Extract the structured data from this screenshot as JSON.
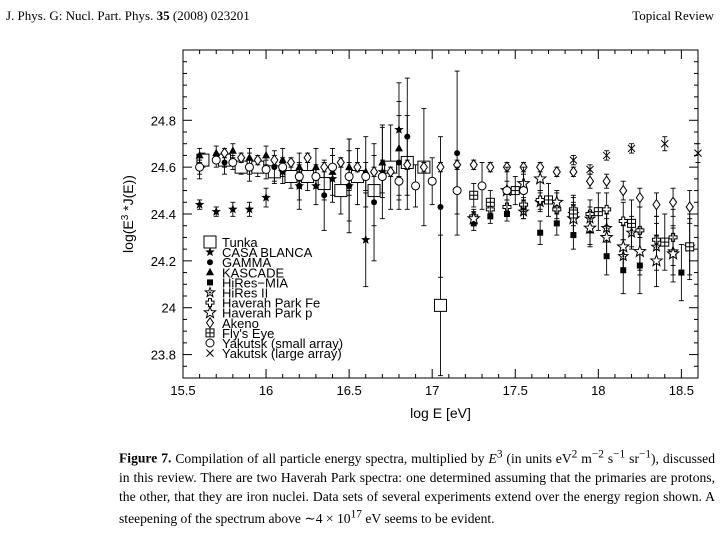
{
  "header": {
    "journal": "J. Phys. G: Nucl. Part. Phys.",
    "volume": "35",
    "year_article": "(2008) 023201",
    "section": "Topical Review"
  },
  "caption": {
    "label": "Figure 7.",
    "text_html": "Compilation of all particle energy spectra, multiplied by <i>E</i><sup>3</sup> (in units eV<sup>2</sup> m<sup>−2</sup> s<sup>−1</sup> sr<sup>−1</sup>), discussed in this review. There are two Haverah Park spectra: one determined assuming that the primaries are protons, the other, that they are iron nuclei. Data sets of several experiments extend over the energy region shown. A steepening of the spectrum above ∼4 × 10<sup>17</sup> eV seems to be evident."
  },
  "chart_data": {
    "type": "scatter",
    "xlabel": "log E [eV]",
    "ylabel": "log(E^3 *J(E))",
    "xlim": [
      15.5,
      18.6
    ],
    "ylim": [
      23.7,
      25.1
    ],
    "xticks": [
      "15.5",
      "16",
      "16.5",
      "17",
      "17.5",
      "18",
      "18.5"
    ],
    "yticks": [
      "23.8",
      "24",
      "24.2",
      "24.4",
      "24.6",
      "24.8"
    ],
    "legend_position": "lower-left",
    "series": [
      {
        "name": "Tunka",
        "marker": "big-square",
        "points": [
          [
            15.62,
            24.63,
            0.03
          ],
          [
            15.75,
            24.63,
            0.03
          ],
          [
            15.85,
            24.6,
            0.03
          ],
          [
            15.95,
            24.6,
            0.04
          ],
          [
            16.05,
            24.58,
            0.04
          ],
          [
            16.15,
            24.56,
            0.05
          ],
          [
            16.25,
            24.56,
            0.06
          ],
          [
            16.35,
            24.53,
            0.07
          ],
          [
            16.45,
            24.5,
            0.1
          ],
          [
            16.55,
            24.56,
            0.12
          ],
          [
            16.65,
            24.5,
            0.15
          ],
          [
            16.75,
            24.6,
            0.18
          ],
          [
            16.85,
            24.62,
            0.2
          ],
          [
            16.95,
            24.6,
            0.25
          ],
          [
            17.05,
            24.01,
            0.3
          ]
        ]
      },
      {
        "name": "CASA BLANCA",
        "marker": "star",
        "points": [
          [
            15.6,
            24.44,
            0.02
          ],
          [
            15.7,
            24.41,
            0.02
          ],
          [
            15.8,
            24.42,
            0.03
          ],
          [
            15.9,
            24.42,
            0.03
          ],
          [
            16.0,
            24.47,
            0.04
          ],
          [
            16.1,
            24.58,
            0.05
          ],
          [
            16.2,
            24.52,
            0.06
          ],
          [
            16.3,
            24.52,
            0.08
          ],
          [
            16.4,
            24.55,
            0.1
          ],
          [
            16.5,
            24.52,
            0.15
          ],
          [
            16.6,
            24.29,
            0.2
          ],
          [
            16.7,
            24.58,
            0.2
          ],
          [
            16.8,
            24.76,
            0.2
          ]
        ]
      },
      {
        "name": "GAMMA",
        "marker": "dot",
        "points": [
          [
            15.6,
            24.6,
            0.05
          ],
          [
            15.75,
            24.62,
            0.05
          ],
          [
            15.9,
            24.6,
            0.06
          ],
          [
            16.05,
            24.6,
            0.07
          ],
          [
            16.2,
            24.52,
            0.1
          ],
          [
            16.35,
            24.48,
            0.15
          ],
          [
            16.5,
            24.52,
            0.2
          ],
          [
            16.65,
            24.45,
            0.25
          ],
          [
            16.8,
            24.62,
            0.2
          ],
          [
            16.85,
            24.73,
            0.25
          ],
          [
            17.05,
            24.43,
            0.3
          ],
          [
            17.15,
            24.66,
            0.35
          ]
        ]
      },
      {
        "name": "KASCADE",
        "marker": "triangle",
        "points": [
          [
            15.6,
            24.65,
            0.03
          ],
          [
            15.7,
            24.66,
            0.03
          ],
          [
            15.8,
            24.67,
            0.03
          ],
          [
            15.9,
            24.64,
            0.04
          ],
          [
            16.0,
            24.65,
            0.04
          ],
          [
            16.1,
            24.63,
            0.05
          ],
          [
            16.2,
            24.6,
            0.06
          ],
          [
            16.3,
            24.6,
            0.08
          ],
          [
            16.4,
            24.58,
            0.1
          ],
          [
            16.5,
            24.6,
            0.12
          ],
          [
            16.6,
            24.58,
            0.15
          ],
          [
            16.7,
            24.62,
            0.15
          ],
          [
            16.8,
            24.68,
            0.2
          ]
        ]
      },
      {
        "name": "HiRes−MIA",
        "marker": "small-square",
        "points": [
          [
            17.25,
            24.36,
            0.03
          ],
          [
            17.35,
            24.39,
            0.03
          ],
          [
            17.45,
            24.4,
            0.03
          ],
          [
            17.55,
            24.42,
            0.04
          ],
          [
            17.65,
            24.32,
            0.05
          ],
          [
            17.75,
            24.36,
            0.05
          ],
          [
            17.85,
            24.31,
            0.06
          ],
          [
            17.95,
            24.33,
            0.07
          ],
          [
            18.05,
            24.22,
            0.08
          ],
          [
            18.15,
            24.16,
            0.1
          ],
          [
            18.25,
            24.18,
            0.12
          ],
          [
            18.5,
            24.15,
            0.12
          ]
        ]
      },
      {
        "name": "HiRes II",
        "marker": "hollow-star",
        "points": [
          [
            17.55,
            24.41,
            0.03
          ],
          [
            17.65,
            24.45,
            0.04
          ],
          [
            17.75,
            24.45,
            0.04
          ],
          [
            17.85,
            24.4,
            0.05
          ],
          [
            17.95,
            24.38,
            0.05
          ],
          [
            18.05,
            24.34,
            0.06
          ],
          [
            18.15,
            24.22,
            0.07
          ],
          [
            18.2,
            24.32,
            0.07
          ],
          [
            18.25,
            24.24,
            0.08
          ],
          [
            18.35,
            24.26,
            0.1
          ],
          [
            18.45,
            24.24,
            0.1
          ],
          [
            18.55,
            24.26,
            0.12
          ]
        ]
      },
      {
        "name": "Haverah Park Fe",
        "marker": "hollow-plus",
        "points": [
          [
            17.25,
            24.39,
            0.03
          ],
          [
            17.35,
            24.42,
            0.03
          ],
          [
            17.45,
            24.43,
            0.03
          ],
          [
            17.55,
            24.44,
            0.03
          ],
          [
            17.65,
            24.46,
            0.04
          ],
          [
            17.75,
            24.42,
            0.04
          ],
          [
            17.85,
            24.42,
            0.05
          ],
          [
            17.95,
            24.4,
            0.06
          ],
          [
            18.05,
            24.42,
            0.07
          ],
          [
            18.15,
            24.37,
            0.08
          ],
          [
            18.25,
            24.33,
            0.1
          ],
          [
            18.35,
            24.29,
            0.1
          ],
          [
            18.45,
            24.3,
            0.12
          ]
        ]
      },
      {
        "name": "Haverah Park p",
        "marker": "hollow-star2",
        "points": [
          [
            17.25,
            24.38,
            0.03
          ],
          [
            17.45,
            24.5,
            0.04
          ],
          [
            17.55,
            24.53,
            0.04
          ],
          [
            17.65,
            24.55,
            0.05
          ],
          [
            17.75,
            24.45,
            0.05
          ],
          [
            17.85,
            24.38,
            0.06
          ],
          [
            17.95,
            24.34,
            0.07
          ],
          [
            18.05,
            24.3,
            0.08
          ],
          [
            18.15,
            24.26,
            0.09
          ],
          [
            18.25,
            24.24,
            0.1
          ],
          [
            18.35,
            24.2,
            0.11
          ],
          [
            18.45,
            24.23,
            0.12
          ]
        ]
      },
      {
        "name": "Akeno",
        "marker": "diamond",
        "points": [
          [
            15.75,
            24.66,
            0.02
          ],
          [
            15.85,
            24.64,
            0.02
          ],
          [
            15.95,
            24.63,
            0.02
          ],
          [
            16.05,
            24.63,
            0.02
          ],
          [
            16.15,
            24.62,
            0.02
          ],
          [
            16.25,
            24.64,
            0.02
          ],
          [
            16.35,
            24.6,
            0.02
          ],
          [
            16.45,
            24.62,
            0.02
          ],
          [
            16.55,
            24.6,
            0.02
          ],
          [
            16.65,
            24.58,
            0.02
          ],
          [
            16.75,
            24.58,
            0.02
          ],
          [
            16.85,
            24.61,
            0.02
          ],
          [
            16.95,
            24.6,
            0.02
          ],
          [
            17.05,
            24.6,
            0.02
          ],
          [
            17.15,
            24.61,
            0.02
          ],
          [
            17.25,
            24.61,
            0.02
          ],
          [
            17.35,
            24.6,
            0.02
          ],
          [
            17.45,
            24.6,
            0.02
          ],
          [
            17.55,
            24.6,
            0.02
          ],
          [
            17.65,
            24.6,
            0.02
          ],
          [
            17.75,
            24.58,
            0.02
          ],
          [
            17.85,
            24.58,
            0.02
          ],
          [
            17.95,
            24.54,
            0.03
          ],
          [
            18.05,
            24.54,
            0.03
          ],
          [
            18.15,
            24.5,
            0.04
          ],
          [
            18.25,
            24.47,
            0.04
          ],
          [
            18.35,
            24.44,
            0.05
          ],
          [
            18.45,
            24.45,
            0.06
          ],
          [
            18.55,
            24.43,
            0.07
          ]
        ]
      },
      {
        "name": "Fly's Eye",
        "marker": "square-plus",
        "points": [
          [
            17.25,
            24.48,
            0.05
          ],
          [
            17.35,
            24.45,
            0.05
          ],
          [
            17.5,
            24.5,
            0.06
          ],
          [
            17.7,
            24.46,
            0.07
          ],
          [
            17.85,
            24.4,
            0.08
          ],
          [
            18.0,
            24.41,
            0.08
          ],
          [
            18.2,
            24.36,
            0.1
          ],
          [
            18.4,
            24.28,
            0.12
          ],
          [
            18.55,
            24.26,
            0.14
          ]
        ]
      },
      {
        "name": "Yakutsk (small array)",
        "marker": "circle",
        "points": [
          [
            15.6,
            24.6,
            0.03
          ],
          [
            15.7,
            24.63,
            0.03
          ],
          [
            15.8,
            24.62,
            0.03
          ],
          [
            15.9,
            24.6,
            0.03
          ],
          [
            16.0,
            24.59,
            0.04
          ],
          [
            16.1,
            24.6,
            0.04
          ],
          [
            16.2,
            24.56,
            0.05
          ],
          [
            16.3,
            24.56,
            0.05
          ],
          [
            16.4,
            24.6,
            0.05
          ],
          [
            16.5,
            24.56,
            0.06
          ],
          [
            16.6,
            24.56,
            0.06
          ],
          [
            16.7,
            24.56,
            0.07
          ],
          [
            16.8,
            24.54,
            0.08
          ],
          [
            16.9,
            24.52,
            0.09
          ],
          [
            17.0,
            24.54,
            0.1
          ],
          [
            17.15,
            24.5,
            0.1
          ],
          [
            17.3,
            24.52,
            0.1
          ],
          [
            17.45,
            24.5,
            0.1
          ],
          [
            17.55,
            24.5,
            0.1
          ]
        ]
      },
      {
        "name": "Yakutsk (large array)",
        "marker": "cross",
        "points": [
          [
            17.85,
            24.63,
            0.02
          ],
          [
            17.95,
            24.59,
            0.02
          ],
          [
            18.05,
            24.65,
            0.02
          ],
          [
            18.2,
            24.68,
            0.02
          ],
          [
            18.4,
            24.7,
            0.03
          ],
          [
            18.6,
            24.66,
            0.04
          ]
        ]
      }
    ]
  }
}
